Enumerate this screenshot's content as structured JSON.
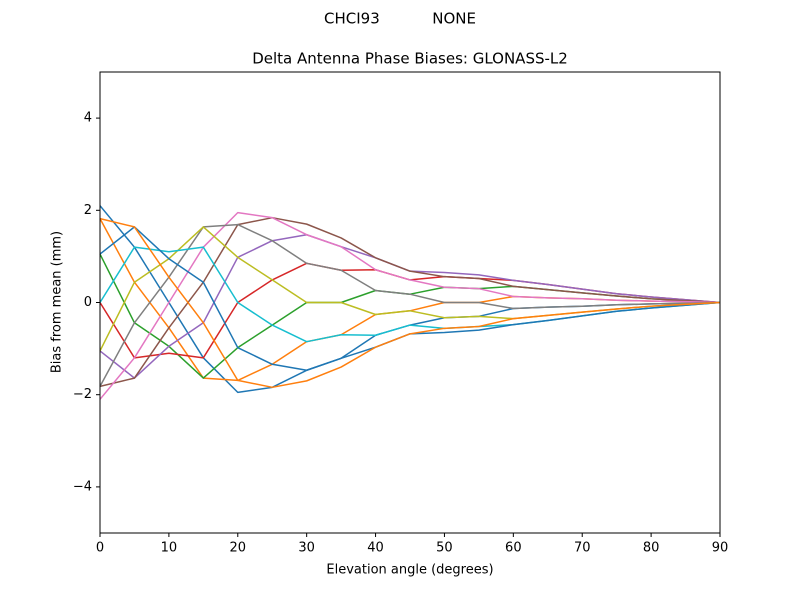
{
  "chart_data": {
    "type": "line",
    "suptitle": "CHCI93           NONE",
    "title": "Delta Antenna Phase Biases: GLONASS-L2",
    "x_label": "Elevation angle (degrees)",
    "y_label": "Bias from mean (mm)",
    "x": [
      0,
      5,
      10,
      15,
      20,
      25,
      30,
      35,
      40,
      45,
      50,
      55,
      60,
      65,
      70,
      75,
      80,
      85,
      90
    ],
    "xlim": [
      0,
      90
    ],
    "ylim": [
      -5,
      5
    ],
    "xticks": [
      0,
      10,
      20,
      30,
      40,
      50,
      60,
      70,
      80,
      90
    ],
    "yticks": [
      {
        "value": -4,
        "label": "−4"
      },
      {
        "value": -2,
        "label": "−2"
      },
      0,
      2,
      4
    ],
    "series": [
      {
        "color": "#1f77b4",
        "values": [
          2.1,
          1.2,
          0,
          -1.2,
          -1.95,
          -1.84,
          -1.47,
          -1.21,
          -0.71,
          -0.49,
          -0.33,
          -0.3,
          -0.13,
          -0.1,
          -0.08,
          -0.05,
          -0.03,
          -0.02,
          0
        ]
      },
      {
        "color": "#ff7f0e",
        "values": [
          1.82,
          0.44,
          -0.55,
          -1.64,
          -1.69,
          -1.34,
          -0.85,
          -0.7,
          -0.26,
          -0.18,
          0,
          0,
          0.13,
          0.1,
          0.08,
          0.05,
          0.03,
          0.02,
          0
        ]
      },
      {
        "color": "#2ca02c",
        "values": [
          1.05,
          -0.44,
          -0.95,
          -1.64,
          -0.98,
          -0.49,
          0,
          0,
          0.26,
          0.18,
          0.33,
          0.3,
          0.35,
          0.28,
          0.21,
          0.14,
          0.08,
          0.04,
          0
        ]
      },
      {
        "color": "#d62728",
        "values": [
          0,
          -1.2,
          -1.1,
          -1.2,
          0,
          0.49,
          0.85,
          0.7,
          0.71,
          0.49,
          0.56,
          0.52,
          0.48,
          0.39,
          0.29,
          0.19,
          0.12,
          0.06,
          0
        ]
      },
      {
        "color": "#9467bd",
        "values": [
          -1.05,
          -1.64,
          -0.95,
          -0.44,
          0.98,
          1.34,
          1.47,
          1.21,
          0.97,
          0.68,
          0.65,
          0.6,
          0.48,
          0.39,
          0.29,
          0.19,
          0.12,
          0.06,
          0
        ]
      },
      {
        "color": "#8c564b",
        "values": [
          -1.82,
          -1.64,
          -0.55,
          0.44,
          1.69,
          1.84,
          1.7,
          1.4,
          0.97,
          0.68,
          0.56,
          0.52,
          0.35,
          0.28,
          0.21,
          0.14,
          0.08,
          0.04,
          0
        ]
      },
      {
        "color": "#e377c2",
        "values": [
          -2.1,
          -1.2,
          0,
          1.2,
          1.95,
          1.84,
          1.47,
          1.21,
          0.71,
          0.49,
          0.33,
          0.3,
          0.13,
          0.1,
          0.08,
          0.05,
          0.03,
          0.02,
          0
        ]
      },
      {
        "color": "#7f7f7f",
        "values": [
          -1.82,
          -0.44,
          0.55,
          1.64,
          1.69,
          1.34,
          0.85,
          0.7,
          0.26,
          0.18,
          0,
          0,
          -0.13,
          -0.1,
          -0.08,
          -0.05,
          -0.03,
          -0.02,
          0
        ]
      },
      {
        "color": "#bcbd22",
        "values": [
          -1.05,
          0.44,
          0.95,
          1.64,
          0.98,
          0.49,
          0,
          0,
          -0.26,
          -0.18,
          -0.33,
          -0.3,
          -0.35,
          -0.28,
          -0.21,
          -0.14,
          -0.08,
          -0.04,
          0
        ]
      },
      {
        "color": "#17becf",
        "values": [
          0,
          1.2,
          1.1,
          1.2,
          0,
          -0.49,
          -0.85,
          -0.7,
          -0.71,
          -0.49,
          -0.56,
          -0.52,
          -0.48,
          -0.39,
          -0.29,
          -0.19,
          -0.12,
          -0.06,
          0
        ]
      },
      {
        "color": "#1f77b4",
        "values": [
          1.05,
          1.64,
          0.95,
          0.44,
          -0.98,
          -1.34,
          -1.47,
          -1.21,
          -0.97,
          -0.68,
          -0.65,
          -0.6,
          -0.48,
          -0.39,
          -0.29,
          -0.19,
          -0.12,
          -0.06,
          0
        ]
      },
      {
        "color": "#ff7f0e",
        "values": [
          1.82,
          1.64,
          0.55,
          -0.44,
          -1.69,
          -1.84,
          -1.7,
          -1.4,
          -0.97,
          -0.68,
          -0.56,
          -0.52,
          -0.35,
          -0.28,
          -0.21,
          -0.14,
          -0.08,
          -0.04,
          0
        ]
      }
    ]
  }
}
